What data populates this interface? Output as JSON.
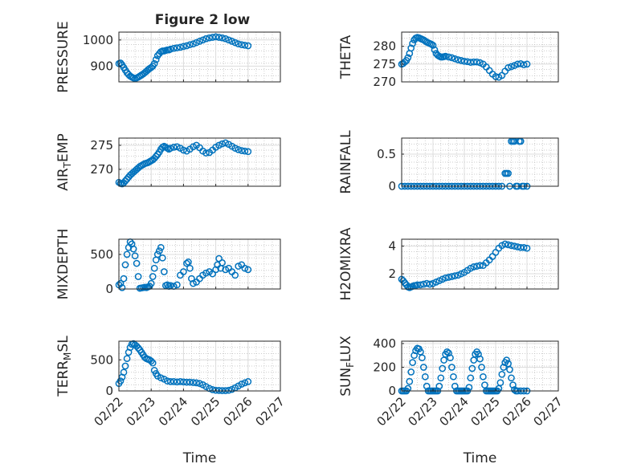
{
  "figure": {
    "title": "Figure 2 low",
    "marker_color": "#0072BD"
  },
  "chart_data": [
    {
      "type": "scatter",
      "ylabel": "PRESSURE",
      "ylim": [
        840,
        1030
      ],
      "yticks": [
        900,
        1000
      ],
      "xlim": [
        0,
        5
      ],
      "xlabel": "",
      "grid": true,
      "x": [
        0,
        0.05,
        0.1,
        0.15,
        0.2,
        0.25,
        0.3,
        0.35,
        0.4,
        0.45,
        0.5,
        0.55,
        0.6,
        0.65,
        0.7,
        0.75,
        0.8,
        0.85,
        0.9,
        0.95,
        1.0,
        1.05,
        1.1,
        1.15,
        1.2,
        1.25,
        1.3,
        1.35,
        1.4,
        1.45,
        1.5,
        1.55,
        1.6,
        1.7,
        1.8,
        1.9,
        2.0,
        2.1,
        2.2,
        2.3,
        2.4,
        2.5,
        2.6,
        2.7,
        2.8,
        2.9,
        3.0,
        3.1,
        3.2,
        3.3,
        3.4,
        3.5,
        3.6,
        3.7,
        3.8,
        3.9,
        4.0
      ],
      "y": [
        910,
        912,
        905,
        895,
        885,
        875,
        868,
        862,
        858,
        855,
        853,
        855,
        858,
        862,
        866,
        870,
        875,
        880,
        886,
        891,
        895,
        900,
        910,
        925,
        940,
        948,
        955,
        958,
        958,
        960,
        962,
        962,
        965,
        968,
        970,
        972,
        975,
        978,
        982,
        985,
        990,
        995,
        1000,
        1005,
        1008,
        1010,
        1012,
        1010,
        1008,
        1005,
        1000,
        995,
        990,
        985,
        982,
        980,
        978
      ]
    },
    {
      "type": "scatter",
      "ylabel": "THETA",
      "ylim": [
        270,
        284
      ],
      "yticks": [
        270,
        275,
        280
      ],
      "xlim": [
        0,
        5
      ],
      "xlabel": "",
      "grid": true,
      "x": [
        0,
        0.05,
        0.1,
        0.15,
        0.2,
        0.25,
        0.3,
        0.35,
        0.4,
        0.45,
        0.5,
        0.55,
        0.6,
        0.65,
        0.7,
        0.75,
        0.8,
        0.85,
        0.9,
        0.95,
        1.0,
        1.05,
        1.1,
        1.15,
        1.2,
        1.25,
        1.3,
        1.35,
        1.4,
        1.5,
        1.6,
        1.7,
        1.8,
        1.9,
        2.0,
        2.1,
        2.2,
        2.3,
        2.4,
        2.5,
        2.6,
        2.7,
        2.8,
        2.9,
        3.0,
        3.1,
        3.2,
        3.3,
        3.4,
        3.5,
        3.6,
        3.7,
        3.8,
        3.9,
        4.0
      ],
      "y": [
        275,
        275.2,
        275.6,
        276,
        276.8,
        278,
        279.5,
        280.8,
        281.8,
        282.3,
        282.5,
        282.4,
        282.2,
        282,
        281.8,
        281.5,
        281.2,
        281,
        280.8,
        280.6,
        280.3,
        279,
        278,
        277.5,
        277.2,
        277,
        277,
        277.1,
        277.2,
        277,
        276.8,
        276.5,
        276.2,
        276,
        275.8,
        275.7,
        275.5,
        275.6,
        275.6,
        275.4,
        275,
        274.2,
        273.2,
        272.2,
        271.5,
        271.3,
        271.8,
        273,
        274,
        274.3,
        274.6,
        275,
        275.1,
        274.8,
        275
      ]
    },
    {
      "type": "scatter",
      "ylabel": "AIR_TEMP",
      "ylim": [
        266.5,
        276.5
      ],
      "yticks": [
        270,
        275
      ],
      "xlim": [
        0,
        5
      ],
      "xlabel": "",
      "grid": true,
      "x": [
        0,
        0.05,
        0.1,
        0.15,
        0.2,
        0.25,
        0.3,
        0.35,
        0.4,
        0.45,
        0.5,
        0.55,
        0.6,
        0.65,
        0.7,
        0.75,
        0.8,
        0.85,
        0.9,
        0.95,
        1.0,
        1.05,
        1.1,
        1.15,
        1.2,
        1.25,
        1.3,
        1.35,
        1.4,
        1.45,
        1.5,
        1.55,
        1.6,
        1.7,
        1.8,
        1.9,
        2.0,
        2.1,
        2.2,
        2.3,
        2.4,
        2.5,
        2.6,
        2.7,
        2.8,
        2.9,
        3.0,
        3.1,
        3.2,
        3.3,
        3.4,
        3.5,
        3.6,
        3.7,
        3.8,
        3.9,
        4.0
      ],
      "y": [
        267.3,
        267.1,
        267,
        267.2,
        267.6,
        268,
        268.4,
        268.8,
        269.1,
        269.4,
        269.7,
        270,
        270.3,
        270.6,
        270.8,
        271,
        271.2,
        271.3,
        271.4,
        271.6,
        271.8,
        272,
        272.3,
        272.7,
        273.1,
        273.6,
        274.2,
        274.6,
        274.8,
        274.6,
        274.4,
        274.2,
        274.4,
        274.6,
        274.7,
        274.4,
        274.0,
        273.8,
        274.2,
        274.7,
        275.0,
        274.5,
        273.8,
        273.4,
        273.5,
        274.0,
        274.6,
        275.0,
        275.3,
        275.5,
        275.2,
        274.8,
        274.4,
        274.1,
        273.9,
        273.8,
        273.7
      ]
    },
    {
      "type": "scatter",
      "ylabel": "RAINFALL",
      "ylim": [
        0,
        0.75
      ],
      "yticks": [
        0,
        0.5
      ],
      "xlim": [
        0,
        5
      ],
      "xlabel": "",
      "grid": true,
      "x": [
        0,
        0.1,
        0.2,
        0.3,
        0.4,
        0.5,
        0.6,
        0.7,
        0.8,
        0.9,
        1.0,
        1.1,
        1.2,
        1.3,
        1.4,
        1.5,
        1.6,
        1.7,
        1.8,
        1.9,
        2.0,
        2.1,
        2.2,
        2.3,
        2.4,
        2.5,
        2.6,
        2.7,
        2.8,
        2.9,
        3.0,
        3.1,
        3.2,
        3.3,
        3.35,
        3.4,
        3.45,
        3.5,
        3.55,
        3.6,
        3.65,
        3.7,
        3.75,
        3.8,
        3.85,
        3.9,
        4.0
      ],
      "y": [
        0,
        0,
        0,
        0,
        0,
        0,
        0,
        0,
        0,
        0,
        0,
        0,
        0,
        0,
        0,
        0,
        0,
        0,
        0,
        0,
        0,
        0,
        0,
        0,
        0,
        0,
        0,
        0,
        0,
        0,
        0,
        0,
        0,
        0.2,
        0.2,
        0.2,
        0,
        0.7,
        0.7,
        0.7,
        0,
        0,
        0.7,
        0.7,
        0,
        0,
        0
      ]
    },
    {
      "type": "scatter",
      "ylabel": "MIXDEPTH",
      "ylim": [
        0,
        720
      ],
      "yticks": [
        0,
        500
      ],
      "xlim": [
        0,
        5
      ],
      "xlabel": "",
      "grid": true,
      "x": [
        0,
        0.05,
        0.1,
        0.15,
        0.2,
        0.25,
        0.3,
        0.35,
        0.4,
        0.45,
        0.5,
        0.55,
        0.6,
        0.65,
        0.7,
        0.75,
        0.8,
        0.85,
        0.9,
        0.95,
        1.0,
        1.05,
        1.1,
        1.15,
        1.2,
        1.25,
        1.3,
        1.35,
        1.4,
        1.45,
        1.5,
        1.55,
        1.6,
        1.7,
        1.8,
        1.9,
        2.0,
        2.1,
        2.15,
        2.2,
        2.25,
        2.3,
        2.4,
        2.5,
        2.6,
        2.7,
        2.8,
        2.9,
        3.0,
        3.05,
        3.1,
        3.15,
        3.2,
        3.3,
        3.4,
        3.5,
        3.6,
        3.7,
        3.8,
        3.9,
        4.0
      ],
      "y": [
        60,
        80,
        20,
        150,
        350,
        500,
        600,
        680,
        650,
        580,
        480,
        370,
        180,
        10,
        15,
        20,
        25,
        20,
        30,
        40,
        80,
        180,
        300,
        420,
        500,
        550,
        600,
        450,
        250,
        50,
        60,
        40,
        50,
        40,
        60,
        200,
        250,
        370,
        390,
        300,
        150,
        80,
        100,
        150,
        200,
        230,
        250,
        220,
        280,
        350,
        440,
        300,
        380,
        280,
        300,
        250,
        200,
        330,
        350,
        300,
        280
      ]
    },
    {
      "type": "scatter",
      "ylabel": "H2OMIXRA",
      "ylim": [
        0.9,
        4.5
      ],
      "yticks": [
        2,
        4
      ],
      "xlim": [
        0,
        5
      ],
      "xlabel": "",
      "grid": true,
      "x": [
        0,
        0.05,
        0.1,
        0.15,
        0.2,
        0.25,
        0.3,
        0.35,
        0.4,
        0.45,
        0.5,
        0.6,
        0.7,
        0.8,
        0.9,
        1.0,
        1.1,
        1.2,
        1.3,
        1.4,
        1.5,
        1.6,
        1.7,
        1.8,
        1.9,
        2.0,
        2.1,
        2.2,
        2.3,
        2.4,
        2.5,
        2.6,
        2.7,
        2.8,
        2.9,
        3.0,
        3.1,
        3.2,
        3.3,
        3.4,
        3.5,
        3.6,
        3.7,
        3.8,
        3.9,
        4.0
      ],
      "y": [
        1.6,
        1.5,
        1.35,
        1.2,
        1.05,
        1.0,
        1.05,
        1.1,
        1.15,
        1.15,
        1.2,
        1.2,
        1.25,
        1.3,
        1.25,
        1.3,
        1.4,
        1.5,
        1.6,
        1.7,
        1.75,
        1.8,
        1.85,
        1.9,
        2.0,
        2.1,
        2.25,
        2.4,
        2.5,
        2.55,
        2.6,
        2.6,
        2.8,
        3.0,
        3.25,
        3.55,
        3.85,
        4.05,
        4.15,
        4.1,
        4.05,
        4.0,
        3.95,
        3.9,
        3.9,
        3.85
      ]
    },
    {
      "type": "scatter",
      "ylabel": "TERR_MSL",
      "ylim": [
        0,
        800
      ],
      "yticks": [
        0,
        500
      ],
      "xlim": [
        0,
        5
      ],
      "xlabel": "Time",
      "xticklabels": [
        "02/22",
        "02/23",
        "02/24",
        "02/25",
        "02/26",
        "02/27"
      ],
      "grid": true,
      "x": [
        0,
        0.05,
        0.1,
        0.15,
        0.2,
        0.25,
        0.3,
        0.35,
        0.4,
        0.45,
        0.5,
        0.55,
        0.6,
        0.65,
        0.7,
        0.75,
        0.8,
        0.85,
        0.9,
        0.95,
        1.0,
        1.05,
        1.1,
        1.15,
        1.2,
        1.3,
        1.4,
        1.5,
        1.6,
        1.7,
        1.8,
        1.9,
        2.0,
        2.1,
        2.2,
        2.3,
        2.4,
        2.5,
        2.6,
        2.7,
        2.8,
        2.9,
        3.0,
        3.1,
        3.2,
        3.3,
        3.4,
        3.5,
        3.6,
        3.7,
        3.8,
        3.9,
        4.0
      ],
      "y": [
        120,
        160,
        220,
        300,
        400,
        520,
        620,
        700,
        750,
        760,
        740,
        720,
        690,
        660,
        620,
        580,
        540,
        520,
        510,
        500,
        480,
        450,
        330,
        280,
        240,
        210,
        190,
        160,
        150,
        150,
        145,
        150,
        145,
        140,
        140,
        135,
        130,
        120,
        100,
        70,
        40,
        20,
        10,
        8,
        5,
        5,
        10,
        25,
        50,
        80,
        110,
        130,
        150
      ]
    },
    {
      "type": "scatter",
      "ylabel": "SUN_FLUX",
      "ylim": [
        0,
        420
      ],
      "yticks": [
        0,
        200,
        400
      ],
      "xlim": [
        0,
        5
      ],
      "xlabel": "Time",
      "xticklabels": [
        "02/22",
        "02/23",
        "02/24",
        "02/25",
        "02/26",
        "02/27"
      ],
      "grid": true,
      "x": [
        0,
        0.05,
        0.1,
        0.15,
        0.2,
        0.25,
        0.3,
        0.35,
        0.4,
        0.45,
        0.5,
        0.55,
        0.6,
        0.65,
        0.7,
        0.75,
        0.8,
        0.85,
        0.9,
        0.95,
        1.0,
        1.05,
        1.1,
        1.15,
        1.2,
        1.25,
        1.3,
        1.35,
        1.4,
        1.45,
        1.5,
        1.55,
        1.6,
        1.65,
        1.7,
        1.75,
        1.8,
        1.85,
        1.9,
        1.95,
        2.0,
        2.05,
        2.1,
        2.15,
        2.2,
        2.25,
        2.3,
        2.35,
        2.4,
        2.45,
        2.5,
        2.55,
        2.6,
        2.65,
        2.7,
        2.75,
        2.8,
        2.85,
        2.9,
        2.95,
        3.0,
        3.05,
        3.1,
        3.15,
        3.2,
        3.25,
        3.3,
        3.35,
        3.4,
        3.45,
        3.5,
        3.55,
        3.6,
        3.65,
        3.7,
        3.8,
        3.9,
        4.0
      ],
      "y": [
        0,
        0,
        0,
        0,
        20,
        80,
        160,
        240,
        300,
        340,
        360,
        355,
        330,
        280,
        200,
        120,
        40,
        0,
        0,
        0,
        0,
        0,
        0,
        0,
        40,
        110,
        190,
        260,
        310,
        330,
        320,
        280,
        200,
        120,
        40,
        0,
        0,
        0,
        0,
        0,
        0,
        0,
        0,
        30,
        110,
        190,
        260,
        310,
        330,
        310,
        270,
        200,
        120,
        50,
        0,
        0,
        0,
        0,
        0,
        0,
        0,
        0,
        20,
        70,
        140,
        200,
        240,
        260,
        230,
        180,
        110,
        50,
        10,
        0,
        0,
        0,
        0,
        0
      ]
    }
  ]
}
